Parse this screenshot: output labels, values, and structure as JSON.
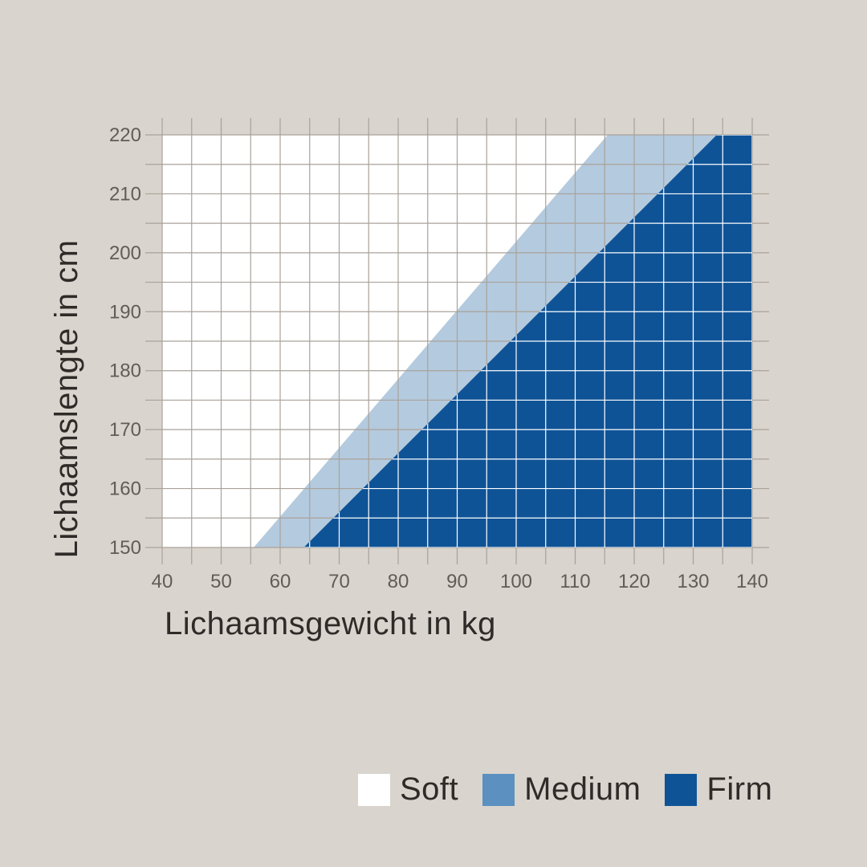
{
  "background_color": "#d9d4cd",
  "chart_data": {
    "type": "area",
    "title": "",
    "xlabel": "Lichaamsgewicht in kg",
    "ylabel": "Lichaamslengte in cm",
    "xlim": [
      40,
      140
    ],
    "ylim": [
      150,
      220
    ],
    "grid": true,
    "grid_step_x_kg": 5,
    "grid_step_y_cm": 5,
    "grid_color": "#a9a29a",
    "grid_color_over_firm": "#ffffff",
    "plot_background": "#ffffff",
    "tick_label_color": "#625c56",
    "axis_title_color": "#2e2b28",
    "x_tick_labels": [
      40,
      50,
      60,
      70,
      80,
      90,
      100,
      110,
      120,
      130,
      140
    ],
    "y_tick_labels": [
      150,
      160,
      170,
      180,
      190,
      200,
      210,
      220
    ],
    "zones": [
      {
        "name": "Soft",
        "fill": "#ffffff",
        "description_region": "left of soft-medium boundary"
      },
      {
        "name": "Medium",
        "fill": "#b4cade",
        "boundary": {
          "heights_cm": [
            150,
            220
          ],
          "weights_kg": [
            55.5,
            115.5
          ]
        }
      },
      {
        "name": "Firm",
        "fill": "#0f5397",
        "boundary": {
          "heights_cm": [
            150,
            220
          ],
          "weights_kg": [
            64,
            134
          ]
        }
      }
    ],
    "legend": {
      "position": "bottom",
      "items": [
        {
          "label": "Soft",
          "color": "#ffffff"
        },
        {
          "label": "Medium",
          "color": "#5c90c1"
        },
        {
          "label": "Firm",
          "color": "#0f5397"
        }
      ]
    }
  }
}
